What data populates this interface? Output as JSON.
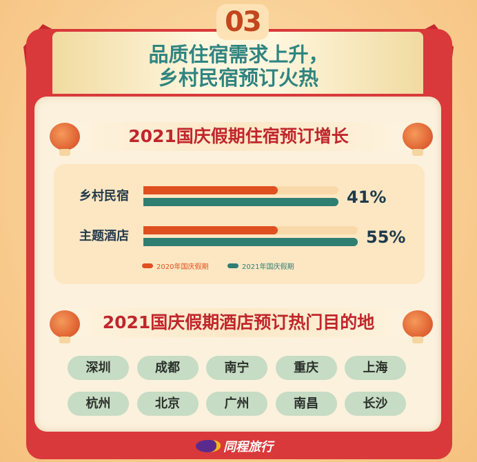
{
  "header": {
    "number": "03",
    "title_line1": "品质住宿需求上升，",
    "title_line2": "乡村民宿预订火热"
  },
  "section1": {
    "title": "2021国庆假期住宿预订增长"
  },
  "section2": {
    "title": "2021国庆假期酒店预订热门目的地"
  },
  "chart_data": {
    "type": "bar",
    "orientation": "horizontal",
    "title": "2021国庆假期住宿预订增长",
    "categories": [
      "乡村民宿",
      "主题酒店"
    ],
    "series": [
      {
        "name": "2020年国庆假期",
        "color": "#e0501f"
      },
      {
        "name": "2021年国庆假期",
        "color": "#2f7e72"
      }
    ],
    "growth_labels": [
      "41%",
      "55%"
    ],
    "growth_values": [
      41,
      55
    ],
    "legend": "bottom"
  },
  "destinations": [
    "深圳",
    "成都",
    "南宁",
    "重庆",
    "上海",
    "杭州",
    "北京",
    "广州",
    "南昌",
    "长沙"
  ],
  "brand": {
    "name": "同程旅行"
  },
  "colors": {
    "frame": "#d9393a",
    "teal": "#2f8480",
    "orange": "#e0501f",
    "pill": "#c6dcc4"
  }
}
